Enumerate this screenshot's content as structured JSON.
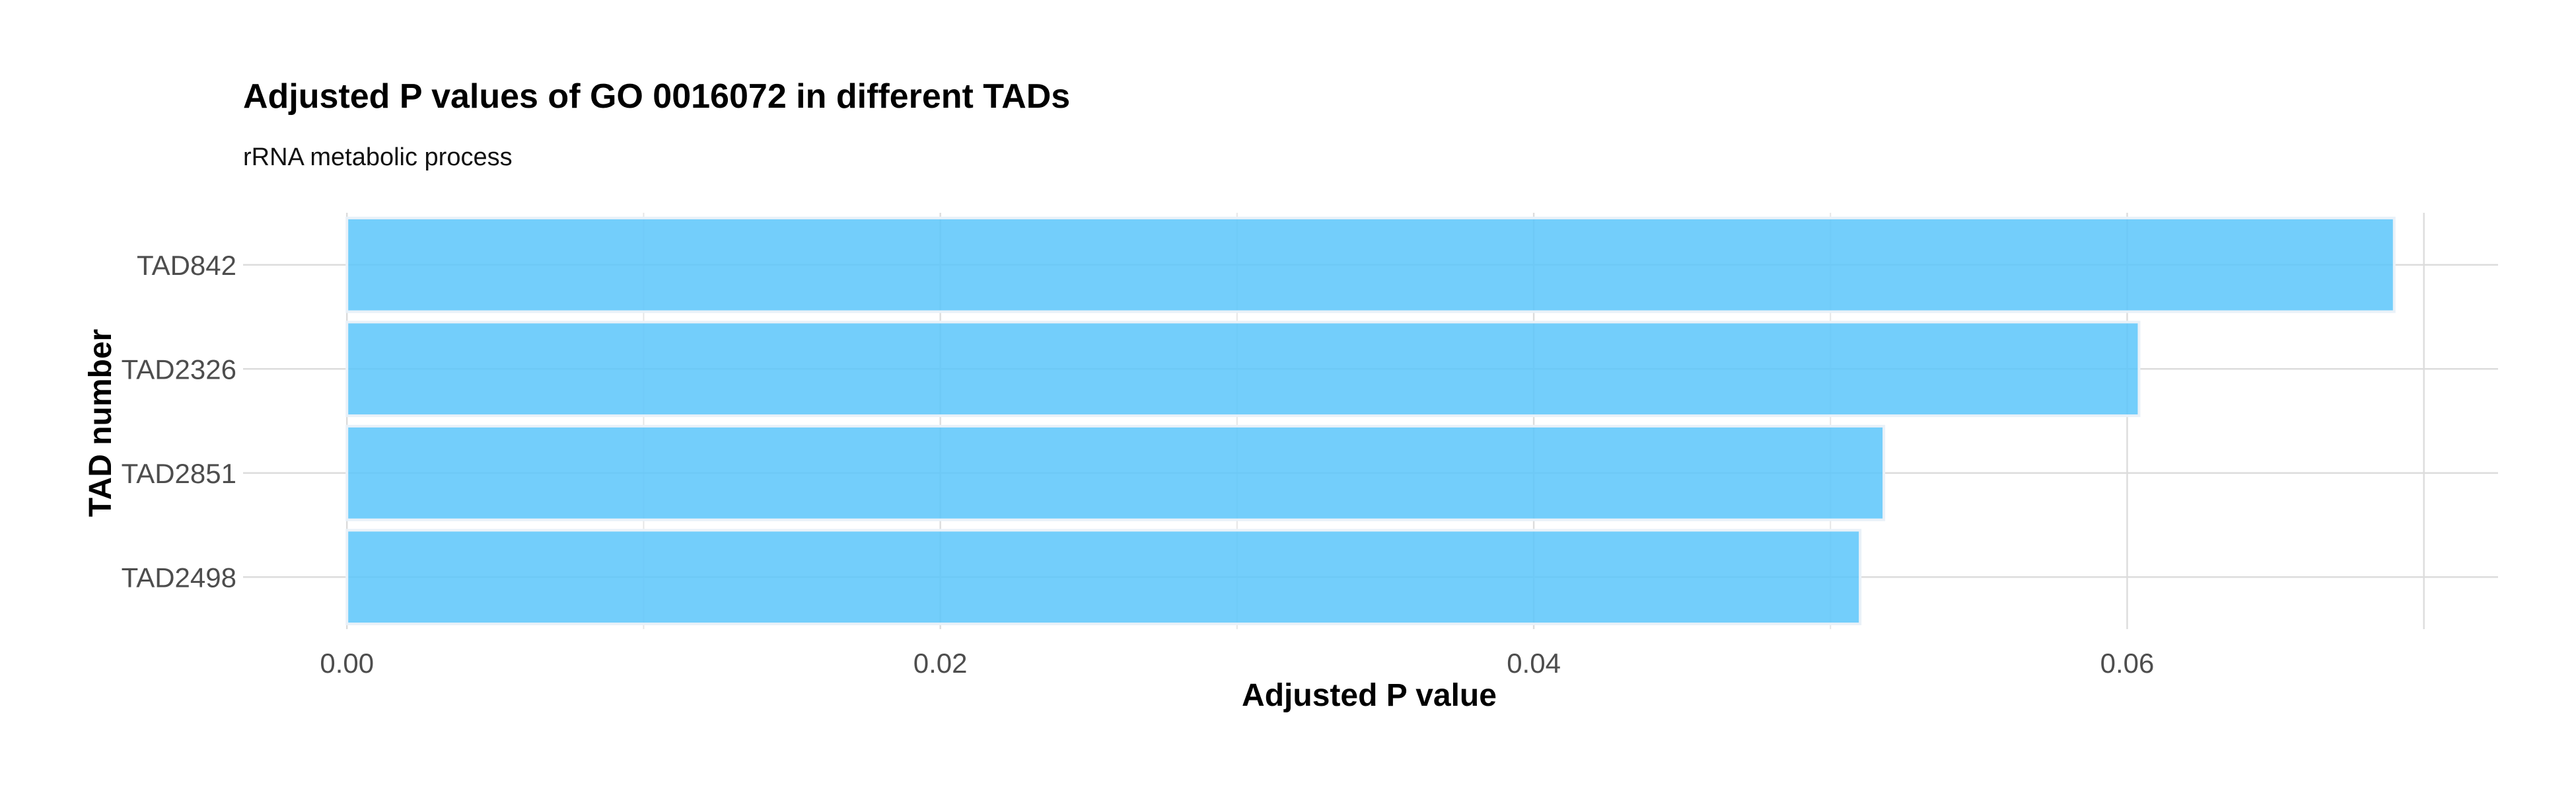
{
  "chart_data": {
    "type": "bar",
    "orientation": "horizontal",
    "title": "Adjusted P values of GO 0016072 in different TADs",
    "subtitle": "rRNA metabolic process",
    "xlabel": "Adjusted P value",
    "ylabel": "TAD number",
    "categories": [
      "TAD842",
      "TAD2326",
      "TAD2851",
      "TAD2498"
    ],
    "values": [
      0.069,
      0.0604,
      0.0518,
      0.051
    ],
    "xlim": [
      -0.0035,
      0.0725
    ],
    "xticks": [
      0.0,
      0.02,
      0.04,
      0.06
    ],
    "xtick_labels": [
      "0.00",
      "0.02",
      "0.04",
      "0.06"
    ],
    "grid": true,
    "legend": "none",
    "colors": {
      "bar": "#5bc6fa",
      "grid": "#dcdcdc",
      "text": "#000000",
      "tick_text": "#4d4d4d"
    }
  }
}
